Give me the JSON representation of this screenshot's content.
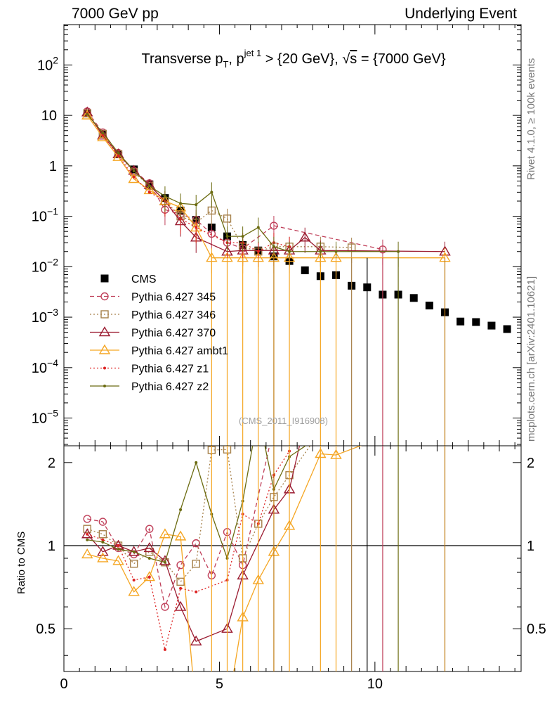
{
  "header": {
    "left": "7000 GeV pp",
    "right": "Underlying Event"
  },
  "side": {
    "rivet": "Rivet 4.1.0, ≥ 100k events",
    "mcplots": "mcplots.cern.ch [arXiv:2401.10621]"
  },
  "analysis_id": "(CMS_2011_I916908)",
  "ratio_label": "Ratio to CMS",
  "chart_data": {
    "type": "scatter",
    "title": "Transverse p_T, p_T^{jet 1} > {20 GeV}, √s = {7000 GeV}",
    "title_parts": {
      "prefix": "Transverse p",
      "sub_T": "T",
      "mid": ", p",
      "sup_jet": "jet 1",
      "suffix": " > {20 GeV}, ",
      "sqrt": "√",
      "s": "s",
      "tail": " = {7000 GeV}"
    },
    "xlim": [
      0,
      14.7
    ],
    "ylim_log": [
      -5.55,
      2.8
    ],
    "ratio_ylim": [
      0.35,
      2.3
    ],
    "x_ticks": [
      {
        "value": 0,
        "label": "0"
      },
      {
        "value": 5,
        "label": "5"
      },
      {
        "value": 10,
        "label": "10"
      }
    ],
    "y_ticks": [
      {
        "exp": 2,
        "label": "10",
        "sup": "2"
      },
      {
        "exp": 1,
        "label": "10",
        "sup": ""
      },
      {
        "exp": 0,
        "label": "1",
        "sup": ""
      },
      {
        "exp": -1,
        "label": "10",
        "sup": "−1"
      },
      {
        "exp": -2,
        "label": "10",
        "sup": "−2"
      },
      {
        "exp": -3,
        "label": "10",
        "sup": "−3"
      },
      {
        "exp": -4,
        "label": "10",
        "sup": "−4"
      },
      {
        "exp": -5,
        "label": "10",
        "sup": "−5"
      }
    ],
    "ratio_ticks": [
      {
        "value": 0.5,
        "label": "0.5"
      },
      {
        "value": 1,
        "label": "1"
      },
      {
        "value": 2,
        "label": "2"
      }
    ],
    "series": [
      {
        "name": "CMS",
        "legend": "CMS",
        "color": "#000000",
        "marker": "filled-square",
        "line": "none",
        "x": [
          0.75,
          1.25,
          1.75,
          2.25,
          2.75,
          3.25,
          3.75,
          4.25,
          4.75,
          5.25,
          5.75,
          6.25,
          6.75,
          7.25,
          7.75,
          8.25,
          8.75,
          9.25,
          9.75,
          10.25,
          10.75,
          11.25,
          11.75,
          12.25,
          12.75,
          13.25,
          13.75,
          14.25
        ],
        "y": [
          11.0,
          4.3,
          1.7,
          0.85,
          0.43,
          0.23,
          0.13,
          0.085,
          0.06,
          0.04,
          0.027,
          0.021,
          0.016,
          0.013,
          0.0085,
          0.0065,
          0.0068,
          0.0042,
          0.0039,
          0.0028,
          0.0028,
          0.0024,
          0.0017,
          0.00125,
          0.00082,
          0.0008,
          0.00068,
          0.00058
        ]
      },
      {
        "name": "Pythia 6.427 345",
        "legend": "Pythia 6.427 345",
        "color": "#c0405a",
        "marker": "open-circle",
        "line": "dashed",
        "x": [
          0.75,
          1.25,
          1.75,
          2.25,
          2.75,
          3.25,
          3.75,
          4.25,
          4.75,
          5.25,
          5.75,
          6.75,
          10.25
        ],
        "y": [
          12.0,
          4.6,
          1.8,
          0.8,
          0.45,
          0.135,
          0.11,
          0.085,
          0.045,
          0.03,
          0.023,
          0.065,
          0.022
        ],
        "ratio": [
          1.25,
          1.22,
          0.98,
          0.93,
          1.15,
          0.6,
          0.85,
          1.02,
          0.78,
          1.12,
          0.85,
          2.7,
          3.0
        ]
      },
      {
        "name": "Pythia 6.427 346",
        "legend": "Pythia 6.427 346",
        "color": "#a6804a",
        "marker": "open-square",
        "line": "dotted",
        "x": [
          0.75,
          1.25,
          1.75,
          2.25,
          2.75,
          3.25,
          3.75,
          4.25,
          4.75,
          5.25,
          5.75,
          6.25,
          6.75,
          7.25,
          8.25,
          9.25
        ],
        "y": [
          11.0,
          4.3,
          1.7,
          0.75,
          0.4,
          0.2,
          0.1,
          0.075,
          0.13,
          0.09,
          0.025,
          0.02,
          0.025,
          0.025,
          0.025,
          0.024
        ],
        "ratio": [
          1.15,
          1.1,
          1.0,
          0.86,
          0.95,
          0.87,
          0.74,
          0.86,
          2.22,
          2.23,
          0.9,
          1.2,
          1.5,
          1.8,
          2.6,
          3.0
        ]
      },
      {
        "name": "Pythia 6.427 370",
        "legend": "Pythia 6.427 370",
        "color": "#9b1b30",
        "marker": "open-triangle",
        "line": "solid",
        "x": [
          0.75,
          1.25,
          1.75,
          2.25,
          2.75,
          3.25,
          3.75,
          4.25,
          5.25,
          5.75,
          6.75,
          7.25,
          7.75,
          8.25,
          12.25
        ],
        "y": [
          11.5,
          4.0,
          1.7,
          0.8,
          0.42,
          0.2,
          0.08,
          0.038,
          0.02,
          0.021,
          0.021,
          0.021,
          0.038,
          0.021,
          0.02
        ],
        "ratio": [
          1.1,
          0.95,
          1.0,
          0.95,
          0.98,
          0.88,
          0.6,
          0.45,
          0.5,
          0.78,
          1.35,
          1.6,
          2.8,
          3.0,
          3.0
        ]
      },
      {
        "name": "Pythia 6.427 ambt1",
        "legend": "Pythia 6.427 ambt1",
        "color": "#f5a623",
        "marker": "open-triangle",
        "line": "solid",
        "x": [
          0.75,
          1.25,
          1.75,
          2.25,
          2.75,
          3.25,
          3.75,
          4.25,
          4.75,
          5.25,
          5.75,
          6.25,
          6.75,
          7.25,
          8.25,
          8.75,
          12.25
        ],
        "y": [
          10.0,
          3.7,
          1.5,
          0.55,
          0.33,
          0.2,
          0.15,
          0.06,
          0.015,
          0.015,
          0.015,
          0.015,
          0.015,
          0.015,
          0.015,
          0.015,
          0.015
        ],
        "ratio": [
          0.93,
          0.9,
          0.88,
          0.68,
          0.77,
          1.1,
          1.08,
          0.25,
          0.25,
          0.25,
          0.55,
          0.75,
          0.95,
          1.18,
          2.15,
          2.13,
          3.0
        ]
      },
      {
        "name": "Pythia 6.427 z1",
        "legend": "Pythia 6.427 z1",
        "color": "#dd2222",
        "marker": "small-dot",
        "line": "dotted",
        "x": [
          0.75,
          1.25,
          1.75,
          2.25,
          2.75,
          3.25,
          3.75,
          4.25,
          5.25,
          5.75,
          6.25,
          6.75,
          7.25
        ],
        "y": [
          11.0,
          4.0,
          1.6,
          0.6,
          0.3,
          0.2,
          0.09,
          0.06,
          0.03,
          0.03,
          0.02,
          0.03,
          0.025
        ],
        "ratio": [
          1.1,
          1.05,
          1.0,
          0.75,
          0.77,
          0.42,
          0.7,
          0.68,
          0.75,
          1.3,
          1.2,
          1.8,
          2.2
        ]
      },
      {
        "name": "Pythia 6.427 z2",
        "legend": "Pythia 6.427 z2",
        "color": "#6b6b10",
        "marker": "small-dot",
        "line": "solid",
        "x": [
          0.75,
          1.25,
          1.75,
          2.25,
          2.75,
          3.25,
          3.75,
          4.25,
          4.75,
          5.25,
          5.75,
          6.25,
          6.75,
          7.25,
          8.25,
          8.75,
          10.75
        ],
        "y": [
          10.5,
          4.5,
          1.8,
          0.8,
          0.4,
          0.25,
          0.18,
          0.17,
          0.3,
          0.04,
          0.04,
          0.06,
          0.025,
          0.02,
          0.02,
          0.02,
          0.02
        ],
        "ratio": [
          1.05,
          1.03,
          0.97,
          0.95,
          0.9,
          0.87,
          1.35,
          2.0,
          1.3,
          0.9,
          1.45,
          3.0,
          1.6,
          2.1,
          2.5,
          2.6,
          3.0
        ]
      }
    ]
  }
}
